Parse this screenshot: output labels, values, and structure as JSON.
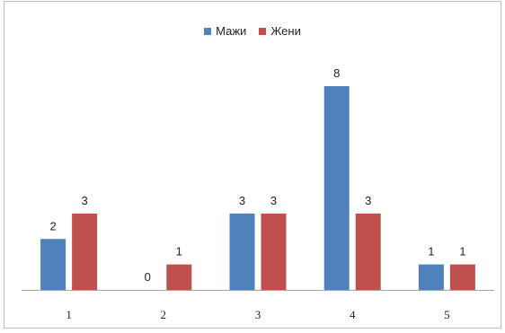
{
  "chart_data": {
    "type": "bar",
    "title": "",
    "xlabel": "",
    "ylabel": "",
    "categories": [
      "1",
      "2",
      "3",
      "4",
      "5"
    ],
    "series": [
      {
        "name": "Мажи",
        "values": [
          2,
          0,
          3,
          8,
          1
        ],
        "color": "#4f81bd"
      },
      {
        "name": "Жени",
        "values": [
          3,
          1,
          3,
          3,
          1
        ],
        "color": "#c0504d"
      }
    ],
    "ylim": [
      0,
      8
    ],
    "grid": false,
    "legend_position": "top"
  }
}
